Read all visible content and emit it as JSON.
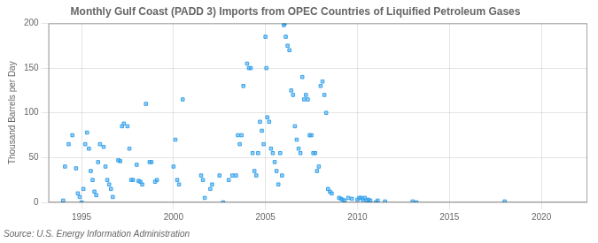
{
  "chart_data": {
    "type": "scatter",
    "title": "Monthly Gulf Coast (PADD 3) Imports from OPEC Countries of Liquified Petroleum Gases",
    "ylabel": "Thousand Barrels per Day",
    "annotation": "Source: U.S. Energy Information Administration",
    "marker": "square",
    "grid": true,
    "xlim": [
      1993.2,
      2022.5
    ],
    "ylim": [
      0,
      200
    ],
    "xticks": [
      1995,
      2000,
      2005,
      2010,
      2015,
      2020
    ],
    "yticks": [
      0,
      50,
      100,
      150,
      200
    ],
    "x": [
      1994.0,
      1994.1,
      1994.3,
      1994.5,
      1994.7,
      1994.8,
      1994.9,
      1995.0,
      1995.1,
      1995.2,
      1995.3,
      1995.4,
      1995.5,
      1995.6,
      1995.7,
      1995.8,
      1995.9,
      1996.0,
      1996.2,
      1996.3,
      1996.4,
      1996.5,
      1996.6,
      1996.7,
      1997.0,
      1997.1,
      1997.2,
      1997.3,
      1997.5,
      1997.6,
      1997.7,
      1997.8,
      1998.0,
      1998.1,
      1998.2,
      1998.3,
      1998.5,
      1998.7,
      1998.8,
      1999.0,
      1999.1,
      2000.0,
      2000.1,
      2000.2,
      2000.3,
      2000.5,
      2001.5,
      2001.6,
      2001.7,
      2002.0,
      2002.1,
      2002.5,
      2002.7,
      2003.0,
      2003.2,
      2003.4,
      2003.5,
      2003.6,
      2003.7,
      2003.8,
      2004.0,
      2004.1,
      2004.2,
      2004.3,
      2004.4,
      2004.5,
      2004.6,
      2004.7,
      2004.8,
      2004.9,
      2005.0,
      2005.05,
      2005.1,
      2005.2,
      2005.3,
      2005.4,
      2005.5,
      2005.6,
      2005.7,
      2005.8,
      2005.9,
      2006.0,
      2006.05,
      2006.1,
      2006.2,
      2006.3,
      2006.4,
      2006.5,
      2006.6,
      2006.7,
      2006.8,
      2006.9,
      2007.0,
      2007.1,
      2007.2,
      2007.3,
      2007.4,
      2007.5,
      2007.6,
      2007.7,
      2007.8,
      2007.9,
      2008.0,
      2008.1,
      2008.2,
      2008.3,
      2008.4,
      2008.5,
      2008.6,
      2009.0,
      2009.1,
      2009.2,
      2009.3,
      2009.5,
      2009.7,
      2010.0,
      2010.1,
      2010.2,
      2010.3,
      2010.4,
      2010.5,
      2010.6,
      2010.7,
      2011.0,
      2011.1,
      2011.5,
      2013.0,
      2013.2,
      2018.0
    ],
    "values": [
      2,
      40,
      65,
      75,
      38,
      10,
      6,
      0,
      15,
      65,
      78,
      60,
      35,
      25,
      12,
      8,
      45,
      65,
      62,
      40,
      25,
      20,
      15,
      6,
      47,
      46,
      85,
      88,
      85,
      60,
      25,
      25,
      42,
      24,
      23,
      20,
      110,
      45,
      45,
      23,
      25,
      40,
      70,
      25,
      20,
      115,
      30,
      25,
      5,
      15,
      20,
      30,
      0,
      25,
      30,
      30,
      75,
      65,
      75,
      130,
      155,
      150,
      150,
      55,
      35,
      30,
      55,
      90,
      80,
      65,
      185,
      150,
      95,
      90,
      60,
      55,
      45,
      35,
      20,
      55,
      30,
      198,
      200,
      185,
      175,
      170,
      125,
      120,
      85,
      70,
      60,
      55,
      140,
      115,
      120,
      115,
      75,
      75,
      55,
      55,
      35,
      40,
      130,
      135,
      120,
      100,
      15,
      12,
      10,
      5,
      4,
      3,
      2,
      5,
      4,
      3,
      5,
      5,
      3,
      5,
      2,
      3,
      2,
      0,
      2,
      1,
      1,
      0,
      1
    ]
  }
}
